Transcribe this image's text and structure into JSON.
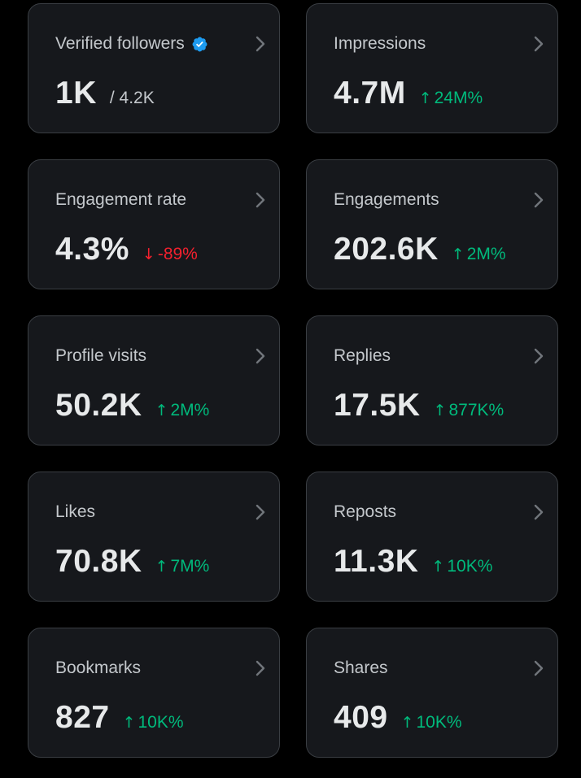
{
  "colors": {
    "background": "#000000",
    "card_background": "#16181c",
    "card_border": "#3a3e43",
    "positive": "#00ba7c",
    "negative": "#f4212e",
    "verified": "#1d9bf0"
  },
  "cards": [
    {
      "title": "Verified followers",
      "value": "1K",
      "sub_value": "/ 4.2K",
      "verified_badge": "verified-badge-icon"
    },
    {
      "title": "Impressions",
      "value": "4.7M",
      "change": "24M%",
      "direction": "up"
    },
    {
      "title": "Engagement rate",
      "value": "4.3%",
      "change": "-89%",
      "direction": "down"
    },
    {
      "title": "Engagements",
      "value": "202.6K",
      "change": "2M%",
      "direction": "up"
    },
    {
      "title": "Profile visits",
      "value": "50.2K",
      "change": "2M%",
      "direction": "up"
    },
    {
      "title": "Replies",
      "value": "17.5K",
      "change": "877K%",
      "direction": "up"
    },
    {
      "title": "Likes",
      "value": "70.8K",
      "change": "7M%",
      "direction": "up"
    },
    {
      "title": "Reposts",
      "value": "11.3K",
      "change": "10K%",
      "direction": "up"
    },
    {
      "title": "Bookmarks",
      "value": "827",
      "change": "10K%",
      "direction": "up"
    },
    {
      "title": "Shares",
      "value": "409",
      "change": "10K%",
      "direction": "up"
    }
  ],
  "icons": {
    "arrow_up": "↑",
    "arrow_down": "↓",
    "chevron": "chevron-right-icon"
  }
}
